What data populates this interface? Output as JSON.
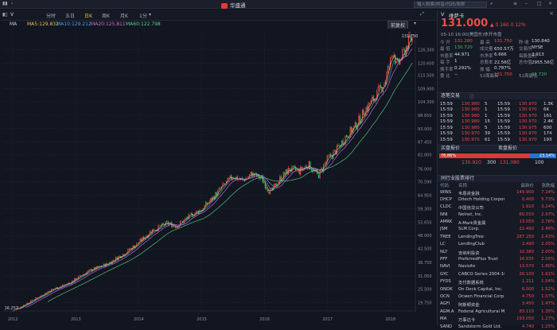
{
  "titlebar": {
    "app_name": "华盛通",
    "search_placeholder": "输入股票/拼音/代码/简称"
  },
  "toolbar": {
    "symbol": "V",
    "tabs": [
      "分时",
      "五日",
      "日K",
      "周K",
      "月K",
      "1分"
    ],
    "active_tab": "日K",
    "adjust_label": "前复权"
  },
  "ma_legend": {
    "label": "MA",
    "items": [
      {
        "text": "MA5:129.832",
        "color": "#e8c24a"
      },
      {
        "text": "MA10:129.212",
        "color": "#4aa0f0"
      },
      {
        "text": "MA20:125.811",
        "color": "#d46ad6"
      },
      {
        "text": "MA60:122.798",
        "color": "#5ad08a"
      }
    ]
  },
  "chart_data": {
    "type": "candlestick",
    "y_ticks": [
      "126.300",
      "120.600",
      "115.500",
      "109.900",
      "104.300",
      "98.650",
      "93.000",
      "87.450",
      "82.000",
      "76.000",
      "70.590",
      "64.950",
      "59.300",
      "53.650",
      "48.000",
      "42.500",
      "36.750",
      "31.050",
      "25.500",
      "19.750"
    ],
    "x_ticks": [
      "2012",
      "2013",
      "2014",
      "2015",
      "2016",
      "2017",
      "2018"
    ],
    "ylim": [
      16.257,
      131.75
    ],
    "max_label": "131.750",
    "min_label": "16.257",
    "price_points": [
      [
        2012.0,
        16.3
      ],
      [
        2012.3,
        20.5
      ],
      [
        2012.6,
        25
      ],
      [
        2012.9,
        28
      ],
      [
        2013.2,
        33
      ],
      [
        2013.5,
        36
      ],
      [
        2013.8,
        41
      ],
      [
        2014.0,
        45
      ],
      [
        2014.2,
        50
      ],
      [
        2014.45,
        53
      ],
      [
        2014.6,
        52
      ],
      [
        2014.8,
        56
      ],
      [
        2015.0,
        59
      ],
      [
        2015.15,
        63
      ],
      [
        2015.35,
        69
      ],
      [
        2015.5,
        73
      ],
      [
        2015.65,
        71
      ],
      [
        2015.8,
        74
      ],
      [
        2015.95,
        72
      ],
      [
        2016.1,
        66
      ],
      [
        2016.25,
        72
      ],
      [
        2016.4,
        76
      ],
      [
        2016.55,
        75
      ],
      [
        2016.7,
        78
      ],
      [
        2016.85,
        73
      ],
      [
        2017.0,
        80
      ],
      [
        2017.15,
        84
      ],
      [
        2017.3,
        90
      ],
      [
        2017.45,
        94
      ],
      [
        2017.6,
        101
      ],
      [
        2017.75,
        106
      ],
      [
        2017.9,
        112
      ],
      [
        2018.0,
        121
      ],
      [
        2018.05,
        127
      ],
      [
        2018.1,
        119
      ],
      [
        2018.2,
        124
      ],
      [
        2018.3,
        130
      ],
      [
        2018.35,
        131
      ]
    ]
  },
  "quote": {
    "symbol": "V",
    "name": "维萨卡",
    "price": "131.000",
    "change": "▲ 0.160 0.12%",
    "status": "05-10 16:00(美国东)休开市盘",
    "rows": [
      [
        [
          "今  开",
          "131.280",
          "up"
        ],
        [
          "最  高",
          "131.750",
          "up"
        ],
        [
          "昨  收",
          "130.840",
          "wh"
        ]
      ],
      [
        [
          "最  低",
          "130.720",
          "dn"
        ],
        [
          "成交量",
          "650.57万",
          "wh"
        ],
        [
          "交易所",
          "NYSE",
          "wh"
        ]
      ],
      [
        [
          "市盈率",
          "44.971",
          "wh"
        ],
        [
          "市净率",
          "6.666",
          "wh"
        ],
        [
          "每股盈利",
          "2.913",
          "wh"
        ]
      ],
      [
        [
          "每  手",
          "1",
          "wh"
        ],
        [
          "总股本",
          "22.56亿",
          "wh"
        ],
        [
          "总市值",
          "2955.56亿",
          "wh"
        ]
      ],
      [
        [
          "换手率",
          "0.292%",
          "wh"
        ],
        [
          "振  幅",
          "0.787%",
          "wh"
        ],
        [
          "",
          "",
          "wh"
        ]
      ],
      [
        [
          "委  比",
          "--",
          "wh"
        ],
        [
          "52周最高",
          "131.750",
          "up"
        ],
        [
          "52周最低",
          "91.720",
          "dn"
        ]
      ]
    ]
  },
  "ticks": {
    "title": "逐笔交易",
    "rows": [
      [
        "15:59",
        "130.980",
        "5",
        "15:59",
        "130.970",
        "1.3K"
      ],
      [
        "15:59",
        "130.980",
        "1",
        "15:59",
        "130.970",
        "6K"
      ],
      [
        "15:59",
        "130.980",
        "1",
        "15:59",
        "130.970",
        "161"
      ],
      [
        "15:59",
        "130.980",
        "15",
        "15:59",
        "130.970",
        "2.4K"
      ],
      [
        "15:59",
        "130.980",
        "5",
        "15:59",
        "130.975",
        "600"
      ],
      [
        "15:59",
        "130.970",
        "39",
        "15:59",
        "130.970",
        "174"
      ],
      [
        "15:59",
        "130.970",
        "61",
        "15:59",
        "130.970",
        "193"
      ]
    ]
  },
  "order_book": {
    "buy_label": "买盘报价",
    "sell_label": "卖盘报价",
    "buy_pct": "76.86%",
    "sell_pct": "23.14%",
    "buy_fraction": 0.7686,
    "buy_price": "130.920",
    "mid_qty": "300",
    "sell_price": "131.080",
    "right_qty": "100"
  },
  "industry": {
    "title": "同行业股票排行",
    "header": [
      "代码",
      "名称",
      "最新价",
      "涨跌幅"
    ],
    "rows": [
      [
        "WINS",
        "韦恩资金融",
        "149.900",
        "7.14%"
      ],
      [
        "DHCP",
        "Ditech Holding Corpor",
        "0.400",
        "5.73%"
      ],
      [
        "CLDC",
        "中国信贷公司",
        "1.910",
        "3.24%"
      ],
      [
        "NNI",
        "Nelnet, Inc.",
        "60.550",
        "2.97%"
      ],
      [
        "AMRK",
        "A-Mark贵金属",
        "13.050",
        "2.76%"
      ],
      [
        "JSM",
        "SLM Corp.",
        "22.490",
        "2.46%"
      ],
      [
        "TREE",
        "LendingTree",
        "287.250",
        "2.43%"
      ],
      [
        "LC",
        "LendingClub",
        "2.490",
        "2.05%"
      ],
      [
        "NLY",
        "安纳利投资",
        "10.380",
        "2.00%"
      ],
      [
        "PFF",
        "PreferredPlus Trust",
        "16.835",
        "2.05%"
      ],
      [
        "NAVI",
        "Navisite",
        "13.570",
        "1.80%"
      ],
      [
        "GYC",
        "CABCO Series 2004-10",
        "20.100",
        "1.61%"
      ],
      [
        "PYDS",
        "支付数据系统",
        "1.211",
        "1.54%"
      ],
      [
        "ONDK",
        "On Deck Capital, Inc.",
        "6.000",
        "1.52%"
      ],
      [
        "OCN",
        "Ocwen Financial Corp.",
        "4.750",
        "1.07%"
      ],
      [
        "AGFI",
        "阿斯顿资金",
        "3.450",
        "1.47%"
      ],
      [
        "AGM.A",
        "Federal Agricultural M",
        "83.110",
        "1.35%"
      ],
      [
        "MA",
        "万事达卡",
        "193.050",
        "1.27%"
      ],
      [
        "SAND",
        "Sandstorm Gold Ltd.",
        "4.740",
        "1.25%"
      ]
    ]
  }
}
